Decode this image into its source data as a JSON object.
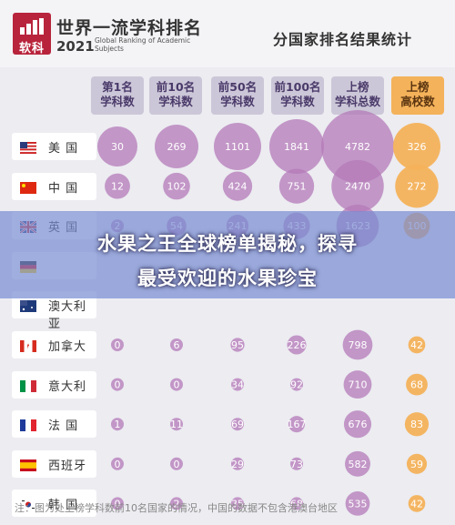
{
  "brand": {
    "logo_text": "软科",
    "title": "世界一流学科排名",
    "year": "2021",
    "subtitle": "Global Ranking of Academic Subjects"
  },
  "title_right": "分国家排名结果统计",
  "banner": {
    "line1": "水果之王全球榜单揭秘，探寻",
    "line2": "最受欢迎的水果珍宝"
  },
  "note": "注：图为处上榜学科数前10名国家的情况，中国的数据不包含港澳台地区",
  "colors": {
    "purple": "#b47ab8",
    "orange": "#f4b25a",
    "header_purple": "#ccc7d8"
  },
  "chart_data": {
    "type": "bubble-table",
    "columns": [
      "第1名\n学科数",
      "前10名\n学科数",
      "前50名\n学科数",
      "前100名\n学科数",
      "上榜\n学科总数",
      "上榜\n高校数"
    ],
    "rows": [
      {
        "country": "美 国",
        "flag": "us-flag",
        "values": [
          "30",
          "269",
          "1101",
          "1841",
          "4782",
          "326"
        ]
      },
      {
        "country": "中 国",
        "flag": "cn-flag",
        "values": [
          "12",
          "102",
          "424",
          "751",
          "2470",
          "272"
        ]
      },
      {
        "country": "英 国",
        "flag": "uk-flag",
        "values": [
          "2",
          "54",
          "241",
          "433",
          "1623",
          "100"
        ]
      },
      {
        "country": "",
        "flag": "de-flag",
        "values": [
          "",
          "",
          "",
          "",
          "",
          ""
        ]
      },
      {
        "country": "澳大利亚",
        "flag": "au-flag",
        "values": [
          "",
          "",
          "",
          "",
          "",
          ""
        ]
      },
      {
        "country": "加拿大",
        "flag": "ca-flag",
        "values": [
          "0",
          "6",
          "95",
          "226",
          "798",
          "42"
        ]
      },
      {
        "country": "意大利",
        "flag": "it-flag",
        "values": [
          "0",
          "0",
          "34",
          "92",
          "710",
          "68"
        ]
      },
      {
        "country": "法 国",
        "flag": "fr-flag",
        "values": [
          "1",
          "11",
          "69",
          "167",
          "676",
          "83"
        ]
      },
      {
        "country": "西班牙",
        "flag": "es-flag",
        "values": [
          "0",
          "0",
          "29",
          "73",
          "582",
          "59"
        ]
      },
      {
        "country": "韩 国",
        "flag": "kr-flag",
        "values": [
          "0",
          "2",
          "35",
          "68",
          "535",
          "42"
        ]
      }
    ],
    "highlight_column": 5
  }
}
